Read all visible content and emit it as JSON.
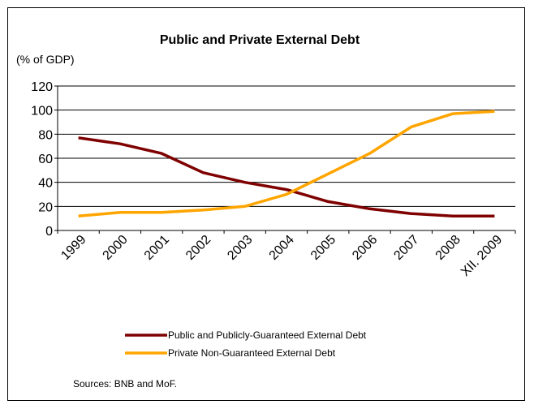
{
  "chart_data": {
    "type": "line",
    "title": "Public and Private External Debt",
    "unit_label": "(% of GDP)",
    "categories": [
      "1999",
      "2000",
      "2001",
      "2002",
      "2003",
      "2004",
      "2005",
      "2006",
      "2007",
      "2008",
      "XII. 2009"
    ],
    "ylim": [
      0,
      120
    ],
    "yticks": [
      0,
      20,
      40,
      60,
      80,
      100,
      120
    ],
    "grid": true,
    "legend_position": "bottom",
    "series": [
      {
        "name": "Public and Publicly-Guaranteed External Debt",
        "color": "#7f0000",
        "values": [
          77,
          72,
          64,
          48,
          40,
          34,
          24,
          18,
          14,
          12,
          12
        ]
      },
      {
        "name": "Private Non-Guaranteed External Debt",
        "color": "#ffa500",
        "values": [
          12,
          15,
          15,
          17,
          20,
          30,
          47,
          64,
          86,
          97,
          99
        ]
      }
    ],
    "source": "Sources: BNB and MoF."
  }
}
